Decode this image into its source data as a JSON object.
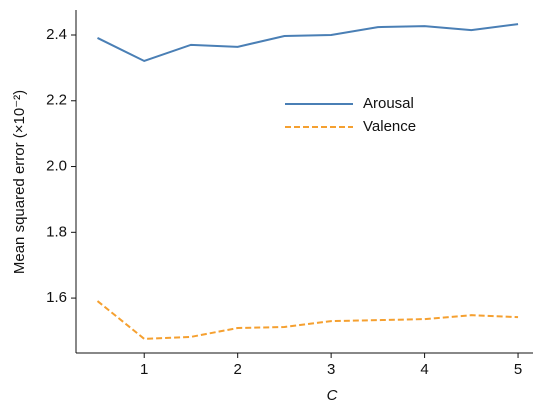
{
  "chart_data": {
    "type": "line",
    "x_label": "C",
    "y_label": "Mean squared error (×10⁻²)",
    "x": [
      0.5,
      1,
      1.5,
      2,
      2.5,
      3,
      3.5,
      4,
      4.5,
      5
    ],
    "series": [
      {
        "name": "Arousal",
        "color": "#4a7fb5",
        "dash": "solid",
        "values": [
          2.391,
          2.321,
          2.37,
          2.364,
          2.397,
          2.4,
          2.424,
          2.427,
          2.415,
          2.433
        ]
      },
      {
        "name": "Valence",
        "color": "#f5a030",
        "dash": "dashed",
        "values": [
          1.591,
          1.476,
          1.482,
          1.509,
          1.512,
          1.53,
          1.533,
          1.536,
          1.548,
          1.542
        ]
      }
    ],
    "xlim": [
      0.27,
      5.16
    ],
    "xticks": [
      1,
      2,
      3,
      4,
      5
    ],
    "ylim": [
      1.433,
      2.476
    ],
    "yticks": [
      1.6,
      1.8,
      {
        "value": 2,
        "label": "2.0"
      },
      2.2,
      2.4
    ],
    "grid": false,
    "legend": "center"
  }
}
